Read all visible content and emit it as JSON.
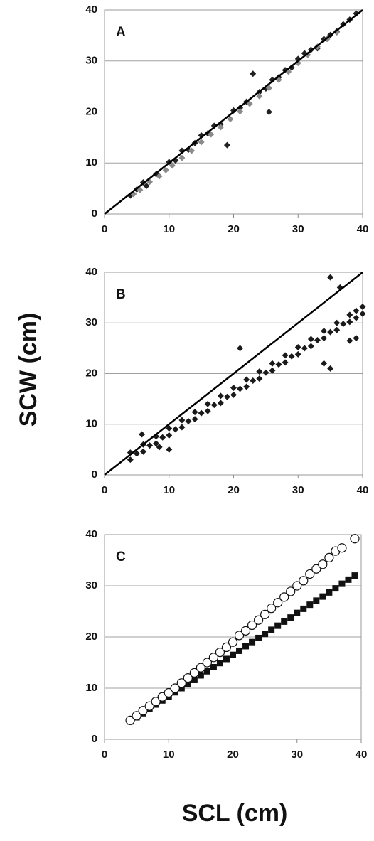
{
  "y_axis_label": "SCW (cm)",
  "x_axis_label": "SCL (cm)",
  "chart_data": [
    {
      "type": "scatter",
      "label": "A",
      "xlim": [
        0,
        40
      ],
      "ylim": [
        0,
        40
      ],
      "xticks": [
        0,
        10,
        20,
        30,
        40
      ],
      "yticks": [
        0,
        10,
        20,
        30,
        40
      ],
      "grid": true,
      "reference_line": {
        "x": [
          0,
          40
        ],
        "y": [
          0,
          40
        ]
      },
      "series": [
        {
          "color": "#222222",
          "marker": "diamond",
          "x": [
            4,
            5,
            6,
            6.5,
            8,
            10,
            11,
            12,
            13,
            14,
            15,
            16,
            17,
            18,
            19,
            20,
            21,
            22,
            23,
            24,
            25,
            25.5,
            26,
            27,
            28,
            29,
            30,
            31,
            32,
            33,
            34,
            35,
            36,
            37,
            38,
            39
          ],
          "values": [
            3.6,
            4.8,
            6.2,
            5.5,
            7.8,
            10.2,
            10.5,
            12.4,
            12.6,
            13.9,
            15.4,
            15.8,
            17.3,
            17.6,
            13.5,
            20.3,
            20.8,
            22.0,
            27.5,
            23.9,
            24.6,
            20,
            26.3,
            26.8,
            28.2,
            28.7,
            30.4,
            31.5,
            32.2,
            32.5,
            34.3,
            35.1,
            35.8,
            37.2,
            38.1,
            39.3
          ]
        },
        {
          "color": "#8a8a8a",
          "marker": "diamond",
          "x": [
            4.5,
            5.5,
            7,
            8.5,
            9.5,
            10.5,
            12,
            13.5,
            15,
            16.5,
            18,
            19.5,
            21,
            22.5,
            24,
            25.5,
            27,
            28.5,
            30,
            31.5,
            33,
            34.5,
            36
          ],
          "values": [
            3.9,
            4.7,
            6.3,
            7.4,
            8.6,
            9.5,
            11.0,
            12.4,
            14.1,
            15.6,
            17.0,
            18.6,
            20.1,
            21.6,
            23.1,
            24.7,
            26.3,
            27.9,
            29.6,
            31.2,
            32.8,
            34.3,
            35.6
          ]
        }
      ]
    },
    {
      "type": "scatter",
      "label": "B",
      "xlim": [
        0,
        40
      ],
      "ylim": [
        0,
        40
      ],
      "xticks": [
        0,
        10,
        20,
        30,
        40
      ],
      "yticks": [
        0,
        10,
        20,
        30,
        40
      ],
      "grid": true,
      "reference_line": {
        "x": [
          0,
          40
        ],
        "y": [
          0,
          40
        ]
      },
      "series": [
        {
          "color": "#1a1a1a",
          "marker": "diamond",
          "x": [
            4,
            4,
            6,
            6,
            8,
            8,
            10,
            10,
            12,
            12,
            14,
            14,
            16,
            16,
            18,
            18,
            20,
            20,
            22,
            22,
            24,
            24,
            26,
            26,
            28,
            28,
            30,
            30,
            32,
            32,
            34,
            34,
            36,
            36,
            38,
            38,
            39,
            39,
            40,
            40,
            5,
            7,
            9,
            11,
            13,
            15,
            17,
            19,
            21,
            23,
            25,
            27,
            29,
            31,
            33,
            35,
            37,
            5.8,
            21,
            35,
            36.5,
            34,
            35,
            38,
            39,
            10,
            8.5
          ],
          "values": [
            3.0,
            4.4,
            4.6,
            6.0,
            6.2,
            7.6,
            7.8,
            9.2,
            9.4,
            10.8,
            11.0,
            12.4,
            12.6,
            14.0,
            14.2,
            15.6,
            15.8,
            17.2,
            17.4,
            18.8,
            19.0,
            20.4,
            20.6,
            22.0,
            22.2,
            23.6,
            23.8,
            25.2,
            25.4,
            26.8,
            27.0,
            28.4,
            28.6,
            30.0,
            30.2,
            31.6,
            31.0,
            32.4,
            31.8,
            33.2,
            4.2,
            5.8,
            7.4,
            9.0,
            10.6,
            12.2,
            13.8,
            15.4,
            17.0,
            18.6,
            20.2,
            21.8,
            23.4,
            25.0,
            26.6,
            28.2,
            29.8,
            8,
            25,
            39,
            37,
            22,
            21,
            26.5,
            27,
            5,
            5.5
          ]
        }
      ]
    },
    {
      "type": "scatter",
      "label": "C",
      "xlim": [
        0,
        40
      ],
      "ylim": [
        0,
        40
      ],
      "xticks": [
        0,
        10,
        20,
        30,
        40
      ],
      "yticks": [
        0,
        10,
        20,
        30,
        40
      ],
      "grid": true,
      "series": [
        {
          "color": "#111111",
          "marker": "square",
          "x": [
            4,
            5,
            6,
            7,
            8,
            9,
            10,
            11,
            12,
            13,
            14,
            15,
            16,
            17,
            18,
            19,
            20,
            21,
            22,
            23,
            24,
            25,
            26,
            27,
            28,
            29,
            30,
            31,
            32,
            33,
            34,
            35,
            36,
            37,
            38,
            39
          ],
          "values": [
            3.5,
            4.3,
            5.1,
            5.9,
            6.8,
            7.6,
            8.4,
            9.2,
            10.0,
            10.8,
            11.6,
            12.5,
            13.3,
            14.1,
            14.9,
            15.7,
            16.5,
            17.3,
            18.2,
            19.0,
            19.8,
            20.6,
            21.4,
            22.2,
            23.0,
            23.8,
            24.7,
            25.5,
            26.3,
            27.1,
            27.9,
            28.7,
            29.5,
            30.4,
            31.2,
            32.0
          ]
        },
        {
          "color": "#111111",
          "marker": "circle",
          "x": [
            4,
            5,
            6,
            7,
            8,
            9,
            10,
            11,
            12,
            13,
            14,
            15,
            16,
            17,
            18,
            19,
            20,
            21,
            22,
            23,
            24,
            25,
            26,
            27,
            28,
            29,
            30,
            31,
            32,
            33,
            34,
            35,
            36,
            37,
            39
          ],
          "values": [
            3.7,
            4.6,
            5.6,
            6.5,
            7.4,
            8.3,
            9.1,
            10,
            11,
            12,
            13,
            14,
            15,
            16,
            17,
            18,
            19,
            20.3,
            21.2,
            22.3,
            23.3,
            24.4,
            25.6,
            26.7,
            27.8,
            28.9,
            30,
            31,
            32.3,
            33.3,
            34.2,
            35.5,
            36.8,
            37.4,
            39.2
          ]
        }
      ]
    }
  ]
}
